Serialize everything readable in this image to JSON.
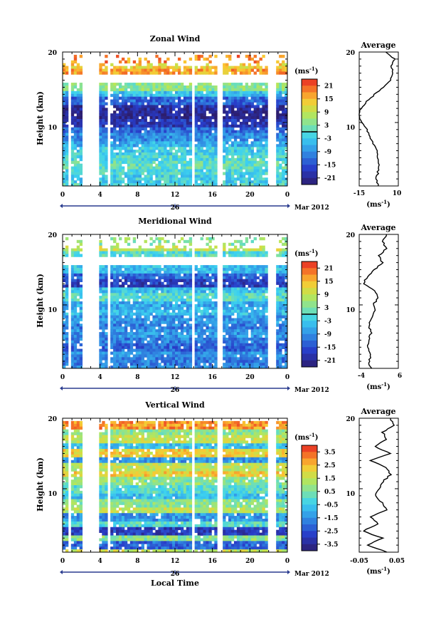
{
  "figure": {
    "date_label": "Mar 2012",
    "day_label": "26",
    "xlabel": "Local Time"
  },
  "chart_data": [
    {
      "type": "heatmap",
      "title": "Zonal Wind",
      "ylabel": "Height (km)",
      "ytick_labels": [
        "10",
        "20"
      ],
      "ylim": [
        1,
        20
      ],
      "xtick_labels": [
        "0",
        "4",
        "8",
        "12",
        "16",
        "20",
        "0"
      ],
      "xlim": [
        0,
        24
      ],
      "grid": false,
      "colorbar": {
        "label": "(ms",
        "label_sup": "-1",
        "label_close": ")",
        "ticks": [
          "21",
          "15",
          "9",
          "3",
          "-3",
          "-9",
          "-15",
          "-21"
        ],
        "range": [
          -24,
          24
        ],
        "contour_level": 0
      },
      "profile": {
        "title": "Average",
        "xtick_labels": [
          "-15",
          "10"
        ],
        "xlim": [
          -15,
          10
        ],
        "unit": "(ms",
        "unit_sup": "-1",
        "unit_close": ")",
        "heights": [
          1,
          2,
          3,
          4,
          5,
          6,
          7,
          8,
          9,
          10,
          11,
          12,
          13,
          14,
          15,
          16,
          17,
          18,
          19,
          20
        ],
        "values": [
          -3,
          -4,
          -3,
          -2,
          -3,
          -4,
          -6,
          -8,
          -10,
          -13,
          -15,
          -14,
          -10,
          -5,
          0,
          5,
          7,
          5,
          8,
          2
        ]
      }
    },
    {
      "type": "heatmap",
      "title": "Meridional Wind",
      "ylabel": "Height (km)",
      "ytick_labels": [
        "10",
        "20"
      ],
      "ylim": [
        1,
        20
      ],
      "xtick_labels": [
        "0",
        "4",
        "8",
        "12",
        "16",
        "20",
        "0"
      ],
      "xlim": [
        0,
        24
      ],
      "grid": false,
      "colorbar": {
        "label": "(ms",
        "label_sup": "-1",
        "label_close": ")",
        "ticks": [
          "21",
          "15",
          "9",
          "3",
          "-3",
          "-9",
          "-15",
          "-21"
        ],
        "range": [
          -24,
          24
        ],
        "contour_level": 0
      },
      "profile": {
        "title": "Average",
        "xtick_labels": [
          "-4",
          "6"
        ],
        "xlim": [
          -4,
          6
        ],
        "unit": "(ms",
        "unit_sup": "-1",
        "unit_close": ")",
        "heights": [
          1,
          2,
          3,
          4,
          5,
          6,
          7,
          8,
          9,
          10,
          11,
          12,
          13,
          14,
          15,
          16,
          17,
          18,
          19,
          20
        ],
        "values": [
          -1,
          -1.5,
          -1,
          -2,
          -1.5,
          -1,
          -1.5,
          -1,
          0,
          -0.5,
          1,
          0,
          -3,
          -2,
          0,
          2,
          1,
          3,
          2,
          3
        ]
      }
    },
    {
      "type": "heatmap",
      "title": "Vertical Wind",
      "ylabel": "Height (km)",
      "ytick_labels": [
        "10",
        "20"
      ],
      "ylim": [
        1,
        20
      ],
      "xtick_labels": [
        "0",
        "4",
        "8",
        "12",
        "16",
        "20",
        "0"
      ],
      "xlim": [
        0,
        24
      ],
      "grid": false,
      "colorbar": {
        "label": "(ms",
        "label_sup": "-1",
        "label_close": ")",
        "ticks": [
          "3.5",
          "2.5",
          "1.5",
          "0.5",
          "-0.5",
          "-1.5",
          "-2.5",
          "-3.5"
        ],
        "range": [
          -4,
          4
        ]
      },
      "profile": {
        "title": "Average",
        "xtick_labels": [
          "-0.05",
          "0.05"
        ],
        "xlim": [
          -0.05,
          0.05
        ],
        "unit": "(ms",
        "unit_sup": "-1",
        "unit_close": ")",
        "heights": [
          1,
          2,
          3,
          4,
          5,
          6,
          7,
          8,
          9,
          10,
          11,
          12,
          13,
          14,
          15,
          16,
          17,
          18,
          19,
          20
        ],
        "values": [
          0.02,
          -0.03,
          0.01,
          -0.04,
          0.0,
          -0.02,
          0.02,
          0.01,
          -0.01,
          0.0,
          0.01,
          0.03,
          0.02,
          -0.02,
          0.03,
          -0.01,
          0.02,
          0.01,
          0.04,
          0.03
        ]
      }
    }
  ]
}
